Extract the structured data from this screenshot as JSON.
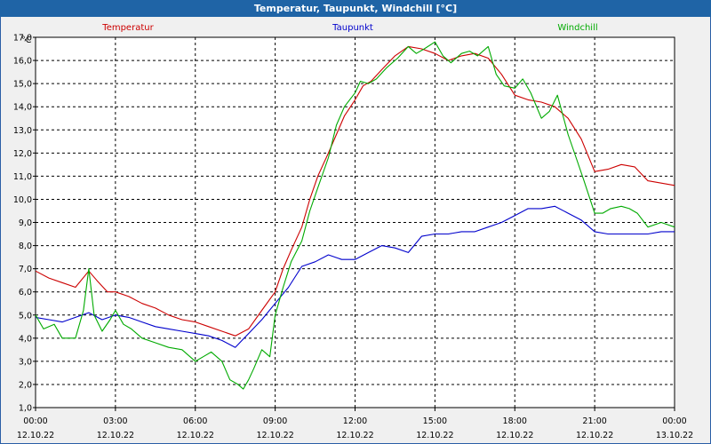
{
  "window": {
    "title": "Temperatur, Taupunkt, Windchill [°C]"
  },
  "chart_data": {
    "type": "line",
    "title": "Temperatur, Taupunkt, Windchill [°C]",
    "ylabel": "°C",
    "xlabel": "",
    "ylim": [
      1.0,
      17.0
    ],
    "y_ticks": [
      "1,0",
      "2,0",
      "3,0",
      "4,0",
      "5,0",
      "6,0",
      "7,0",
      "8,0",
      "9,0",
      "10,0",
      "11,0",
      "12,0",
      "13,0",
      "14,0",
      "15,0",
      "16,0",
      "17,0"
    ],
    "xlim": [
      0,
      24
    ],
    "x_ticks": [
      {
        "time": "00:00",
        "date": "12.10.22",
        "h": 0
      },
      {
        "time": "03:00",
        "date": "12.10.22",
        "h": 3
      },
      {
        "time": "06:00",
        "date": "12.10.22",
        "h": 6
      },
      {
        "time": "09:00",
        "date": "12.10.22",
        "h": 9
      },
      {
        "time": "12:00",
        "date": "12.10.22",
        "h": 12
      },
      {
        "time": "15:00",
        "date": "12.10.22",
        "h": 15
      },
      {
        "time": "18:00",
        "date": "12.10.22",
        "h": 18
      },
      {
        "time": "21:00",
        "date": "12.10.22",
        "h": 21
      },
      {
        "time": "00:00",
        "date": "13.10.22",
        "h": 24
      }
    ],
    "grid": true,
    "series": [
      {
        "name": "Temperatur",
        "color": "#cc0000",
        "x": [
          0,
          0.5,
          1,
          1.5,
          2,
          2.3,
          2.7,
          3,
          3.5,
          4,
          4.5,
          5,
          5.5,
          6,
          6.5,
          7,
          7.5,
          8,
          8.5,
          9,
          9.3,
          9.6,
          10,
          10.3,
          10.6,
          11,
          11.3,
          11.6,
          12,
          12.3,
          12.6,
          13,
          13.5,
          14,
          14.5,
          15,
          15.5,
          16,
          16.5,
          17,
          17.5,
          18,
          18.5,
          19,
          19.5,
          20,
          20.5,
          21,
          21.5,
          22,
          22.5,
          23,
          23.5,
          24
        ],
        "values": [
          6.9,
          6.6,
          6.4,
          6.2,
          6.9,
          6.5,
          6.0,
          6.0,
          5.8,
          5.5,
          5.3,
          5.0,
          4.8,
          4.7,
          4.5,
          4.3,
          4.1,
          4.4,
          5.2,
          6.0,
          7.0,
          7.8,
          8.8,
          10.0,
          11.0,
          12.0,
          12.8,
          13.6,
          14.3,
          14.9,
          15.1,
          15.6,
          16.2,
          16.6,
          16.5,
          16.3,
          16.0,
          16.2,
          16.3,
          16.1,
          15.4,
          14.5,
          14.3,
          14.2,
          14.0,
          13.5,
          12.6,
          11.2,
          11.3,
          11.5,
          11.4,
          10.8,
          10.7,
          10.6
        ]
      },
      {
        "name": "Taupunkt",
        "color": "#0000cc",
        "x": [
          0,
          0.5,
          1,
          1.5,
          2,
          2.5,
          3,
          3.5,
          4,
          4.5,
          5,
          5.5,
          6,
          6.5,
          7,
          7.5,
          8,
          8.5,
          9,
          9.5,
          10,
          10.5,
          11,
          11.5,
          12,
          12.5,
          13,
          13.5,
          14,
          14.5,
          15,
          15.5,
          16,
          16.5,
          17,
          17.5,
          18,
          18.5,
          19,
          19.5,
          20,
          20.5,
          21,
          21.5,
          22,
          22.5,
          23,
          23.5,
          24
        ],
        "values": [
          4.9,
          4.8,
          4.7,
          4.9,
          5.1,
          4.8,
          5.0,
          4.9,
          4.7,
          4.5,
          4.4,
          4.3,
          4.2,
          4.1,
          3.9,
          3.6,
          4.2,
          4.8,
          5.5,
          6.2,
          7.1,
          7.3,
          7.6,
          7.4,
          7.4,
          7.7,
          8.0,
          7.9,
          7.7,
          8.4,
          8.5,
          8.5,
          8.6,
          8.6,
          8.8,
          9.0,
          9.3,
          9.6,
          9.6,
          9.7,
          9.4,
          9.1,
          8.6,
          8.5,
          8.5,
          8.5,
          8.5,
          8.6,
          8.6
        ]
      },
      {
        "name": "Windchill",
        "color": "#00aa00",
        "x": [
          0,
          0.3,
          0.7,
          1,
          1.5,
          1.8,
          2,
          2.2,
          2.5,
          2.8,
          3,
          3.3,
          3.6,
          4,
          4.5,
          5,
          5.5,
          6,
          6.3,
          6.6,
          7,
          7.3,
          7.6,
          7.8,
          8,
          8.2,
          8.5,
          8.8,
          9,
          9.3,
          9.6,
          10,
          10.3,
          10.6,
          11,
          11.3,
          11.6,
          12,
          12.2,
          12.5,
          12.8,
          13.2,
          13.6,
          14,
          14.3,
          14.6,
          15,
          15.3,
          15.6,
          16,
          16.3,
          16.6,
          17,
          17.3,
          17.6,
          18,
          18.3,
          18.6,
          19,
          19.3,
          19.6,
          20,
          20.3,
          20.6,
          21,
          21.3,
          21.6,
          22,
          22.3,
          22.6,
          23,
          23.5,
          24
        ],
        "values": [
          5.0,
          4.4,
          4.6,
          4.0,
          4.0,
          5.2,
          7.0,
          5.0,
          4.3,
          4.8,
          5.2,
          4.6,
          4.4,
          4.0,
          3.8,
          3.6,
          3.5,
          3.0,
          3.2,
          3.4,
          3.0,
          2.2,
          2.0,
          1.8,
          2.2,
          2.7,
          3.5,
          3.2,
          5.0,
          6.2,
          7.3,
          8.2,
          9.5,
          10.5,
          11.8,
          13.2,
          14.0,
          14.6,
          15.1,
          15.0,
          15.2,
          15.7,
          16.1,
          16.6,
          16.3,
          16.5,
          16.8,
          16.2,
          15.9,
          16.3,
          16.4,
          16.2,
          16.6,
          15.4,
          14.9,
          14.8,
          15.2,
          14.6,
          13.5,
          13.8,
          14.5,
          12.8,
          11.8,
          10.8,
          9.4,
          9.4,
          9.6,
          9.7,
          9.6,
          9.4,
          8.8,
          9.0,
          8.8
        ]
      }
    ]
  }
}
